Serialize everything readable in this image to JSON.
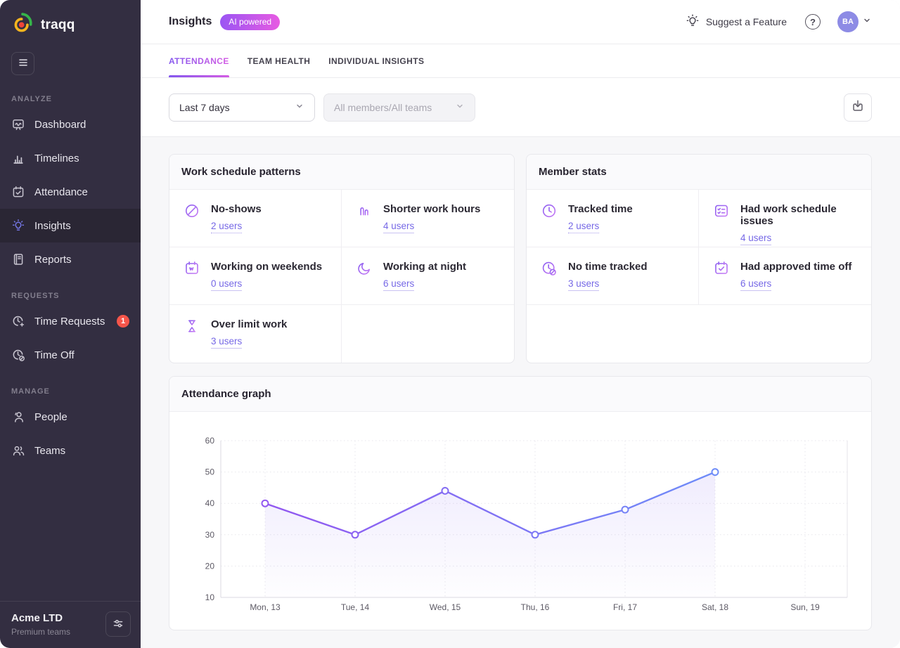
{
  "sidebar": {
    "brand": "traqq",
    "sections": [
      {
        "label": "ANALYZE",
        "items": [
          {
            "label": "Dashboard",
            "icon": "dashboard-icon",
            "active": false
          },
          {
            "label": "Timelines",
            "icon": "timelines-icon",
            "active": false
          },
          {
            "label": "Attendance",
            "icon": "attendance-icon",
            "active": false
          },
          {
            "label": "Insights",
            "icon": "insights-icon",
            "active": true
          },
          {
            "label": "Reports",
            "icon": "reports-icon",
            "active": false
          }
        ]
      },
      {
        "label": "REQUESTS",
        "items": [
          {
            "label": "Time Requests",
            "icon": "time-requests-icon",
            "badge": "1"
          },
          {
            "label": "Time Off",
            "icon": "time-off-icon"
          }
        ]
      },
      {
        "label": "MANAGE",
        "items": [
          {
            "label": "People",
            "icon": "people-icon"
          },
          {
            "label": "Teams",
            "icon": "teams-icon"
          }
        ]
      }
    ],
    "footer": {
      "company": "Acme LTD",
      "plan": "Premium teams",
      "settings_icon": "sliders-icon"
    }
  },
  "header": {
    "title": "Insights",
    "badge": "AI powered",
    "suggest_feature": "Suggest a Feature",
    "help_glyph": "?",
    "avatar_initials": "BA"
  },
  "tabs": [
    {
      "label": "ATTENDANCE",
      "active": true
    },
    {
      "label": "TEAM HEALTH",
      "active": false
    },
    {
      "label": "INDIVIDUAL INSIGHTS",
      "active": false
    }
  ],
  "filters": {
    "date_range": {
      "value": "Last 7 days"
    },
    "members": {
      "value": "All members/All teams",
      "disabled": true
    },
    "export_icon": "download-icon"
  },
  "cards": {
    "work_schedule": {
      "title": "Work schedule patterns",
      "items": [
        {
          "label": "No-shows",
          "users": "2 users",
          "icon": "no-shows-icon",
          "underline": "dotted"
        },
        {
          "label": "Shorter work hours",
          "users": "4 users",
          "icon": "shorter-hours-icon",
          "underline": "solid"
        },
        {
          "label": "Working on weekends",
          "users": "0 users",
          "icon": "weekend-calendar-icon",
          "underline": "solid"
        },
        {
          "label": "Working at night",
          "users": "6 users",
          "icon": "moon-icon",
          "underline": "solid"
        },
        {
          "label": "Over limit work",
          "users": "3 users",
          "icon": "hourglass-icon",
          "underline": "solid"
        }
      ]
    },
    "member_stats": {
      "title": "Member stats",
      "items": [
        {
          "label": "Tracked time",
          "users": "2 users",
          "icon": "clock-icon",
          "underline": "dotted"
        },
        {
          "label": "Had work schedule issues",
          "users": "4 users",
          "icon": "checklist-icon",
          "underline": "solid"
        },
        {
          "label": "No time tracked",
          "users": "3 users",
          "icon": "clock-slash-icon",
          "underline": "solid"
        },
        {
          "label": "Had approved time off",
          "users": "6 users",
          "icon": "calendar-check-icon",
          "underline": "solid"
        }
      ]
    }
  },
  "chart_data": {
    "type": "line",
    "title": "Attendance graph",
    "series_name": "Attendance",
    "categories": [
      "Mon, 13",
      "Tue, 14",
      "Wed, 15",
      "Thu, 16",
      "Fri, 17",
      "Sat, 18",
      "Sun, 19"
    ],
    "values": [
      40,
      30,
      44,
      30,
      38,
      50,
      null
    ],
    "ylim": [
      10,
      60
    ],
    "yticks": [
      10,
      20,
      30,
      40,
      50,
      60
    ],
    "grid": "dotted",
    "legend": "none",
    "line_color_start": "#9257F0",
    "line_color_end": "#6E8CF8",
    "area_color": "#8B6CF0"
  },
  "colors": {
    "accent_purple": "#7668E6",
    "badge_gradient_start": "#9A55F3",
    "badge_gradient_end": "#E75BE2",
    "badge_red": "#F5554A",
    "sidebar_bg": "#332E41",
    "avatar_bg": "#8D8BE5"
  }
}
